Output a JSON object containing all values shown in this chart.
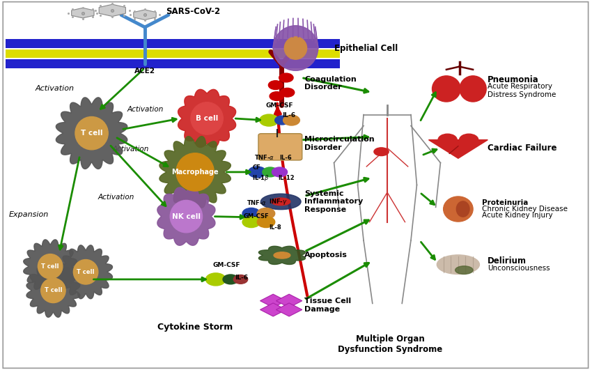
{
  "bg_color": "#ffffff",
  "arrow_color": "#1a8c00",
  "red_arrow_color": "#cc0000",
  "labels": {
    "sars": "SARS-CoV-2",
    "ace2": "ACE2",
    "epithelial": "Epithelial Cell",
    "activation1": "Activation",
    "activation2": "Activation",
    "activation3": "Activation",
    "activation4": "Activation",
    "expansion": "Expansion",
    "tcell": "T cell",
    "bcell": "B cell",
    "macrophage": "Macrophage",
    "nkcell": "NK cell",
    "cytokine_storm": "Cytokine Storm",
    "coagulation": "Coagulation\nDisorder",
    "microcirculation": "Microcirculation\nDisorder",
    "systemic": "Systemic\nInflammatory\nResponse",
    "apoptosis": "Apoptosis",
    "tissue": "Tissue Cell\nDamage",
    "pneumonia": "Pneumonia",
    "ards": "Acute Respiratory\nDistress Syndrome",
    "cardiac": "Cardiac Failure",
    "proteinuria": "Proteinuria",
    "ckd": "Chronic Kidney Disease",
    "aki": "Acute Kidney Injury",
    "delirium": "Delirium",
    "unconsciousness": "Unconsciousness",
    "mods": "Multiple Organ\nDysfunction Syndrome"
  },
  "membrane_colors": [
    "#0000cc",
    "#dddd00",
    "#0000cc"
  ],
  "tcell_outer": "#555555",
  "tcell_inner": "#cc9944",
  "bcell_outer": "#cc2222",
  "bcell_inner": "#dd4444",
  "macrophage_outer": "#556622",
  "macrophage_inner": "#cc8811",
  "nkcell_outer": "#885599",
  "nkcell_inner": "#bb77cc"
}
